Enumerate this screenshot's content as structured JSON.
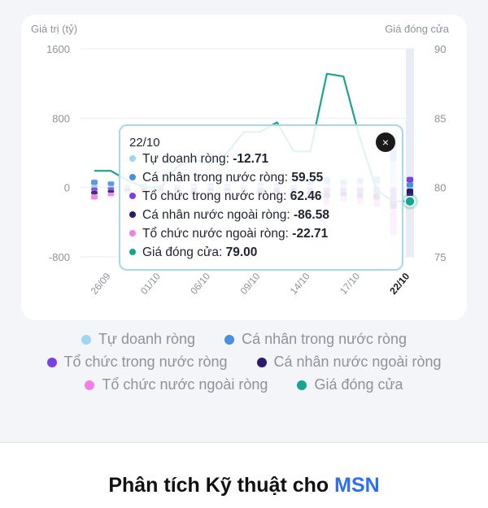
{
  "chart": {
    "left_axis_title": "Giá trị (tỷ)",
    "right_axis_title": "Giá đóng cửa",
    "left_ticks": [
      "1600",
      "800",
      "0",
      "-800"
    ],
    "right_ticks": [
      "90",
      "85",
      "80",
      "75"
    ],
    "date_labels": [
      "26/09",
      "01/10",
      "06/10",
      "09/10",
      "14/10",
      "17/10",
      "22/10"
    ]
  },
  "chart_data": {
    "type": "bar",
    "ylim_left": [
      -800,
      1600
    ],
    "ylim_right": [
      75,
      90
    ],
    "x_tick_labels": [
      "26/09",
      "01/10",
      "06/10",
      "09/10",
      "14/10",
      "17/10",
      "22/10"
    ],
    "num_sessions": 20,
    "series": [
      {
        "name": "Tự doanh ròng",
        "color": "#9fd4f3",
        "values": [
          30,
          20,
          10,
          15,
          10,
          10,
          20,
          20,
          15,
          10,
          20,
          20,
          10,
          30,
          40,
          30,
          40,
          50,
          300,
          -12.71
        ]
      },
      {
        "name": "Cá nhân trong nước ròng",
        "color": "#4a8ee0",
        "values": [
          60,
          50,
          20,
          30,
          20,
          20,
          30,
          30,
          30,
          20,
          40,
          30,
          20,
          60,
          80,
          60,
          70,
          80,
          300,
          59.55
        ]
      },
      {
        "name": "Tổ chức trong nước ròng",
        "color": "#7b3fe4",
        "values": [
          -40,
          -30,
          -20,
          -20,
          -20,
          -20,
          -30,
          -20,
          -20,
          -20,
          -30,
          -30,
          -20,
          -40,
          -60,
          -50,
          -60,
          -70,
          -150,
          62.46
        ]
      },
      {
        "name": "Cá nhân nước ngoài ròng",
        "color": "#2d1a6e",
        "values": [
          -40,
          -30,
          -20,
          -20,
          -20,
          -20,
          -30,
          -20,
          -20,
          -20,
          -30,
          -30,
          -20,
          -40,
          -60,
          -50,
          -60,
          -70,
          -100,
          -86.58
        ]
      },
      {
        "name": "Tổ chức nước ngoài ròng",
        "color": "#f27ee8",
        "values": [
          -60,
          -40,
          -30,
          -30,
          -30,
          -30,
          -40,
          -30,
          -30,
          -30,
          -40,
          -40,
          -30,
          -60,
          -80,
          -60,
          -70,
          -80,
          -300,
          -22.71
        ]
      },
      {
        "name": "Giá đóng cửa",
        "type": "line",
        "axis": "right",
        "color": "#17a58f",
        "values": [
          81.2,
          81.2,
          80.5,
          80.0,
          80.0,
          81.5,
          82.0,
          81.7,
          82.5,
          84.0,
          84.0,
          84.7,
          82.6,
          82.6,
          88.2,
          88.0,
          83.5,
          79.8,
          79.0,
          79.0
        ]
      }
    ]
  },
  "tooltip": {
    "date": "22/10",
    "rows": [
      {
        "label": "Tự doanh ròng:",
        "value": "-12.71",
        "color": "#9fd4f3"
      },
      {
        "label": "Cá nhân trong nước ròng:",
        "value": "59.55",
        "color": "#4a8ee0"
      },
      {
        "label": "Tổ chức trong nước ròng:",
        "value": "62.46",
        "color": "#7b3fe4"
      },
      {
        "label": "Cá nhân nước ngoài ròng:",
        "value": "-86.58",
        "color": "#2d1a6e"
      },
      {
        "label": "Tổ chức nước ngoài ròng:",
        "value": "-22.71",
        "color": "#f27ee8"
      },
      {
        "label": "Giá đóng cửa:",
        "value": "79.00",
        "color": "#17a58f"
      }
    ],
    "close_symbol": "×"
  },
  "legend": [
    {
      "label": "Tự doanh ròng",
      "color": "#9fd4f3"
    },
    {
      "label": "Cá nhân trong nước ròng",
      "color": "#4a8ee0"
    },
    {
      "label": "Tổ chức trong nước ròng",
      "color": "#7b3fe4"
    },
    {
      "label": "Cá nhân nước ngoài ròng",
      "color": "#2d1a6e"
    },
    {
      "label": "Tổ chức nước ngoài ròng",
      "color": "#f27ee8"
    },
    {
      "label": "Giá đóng cửa",
      "color": "#17a58f"
    }
  ],
  "analysis": {
    "title_prefix": "Phân tích Kỹ thuật cho",
    "ticker": "MSN"
  }
}
